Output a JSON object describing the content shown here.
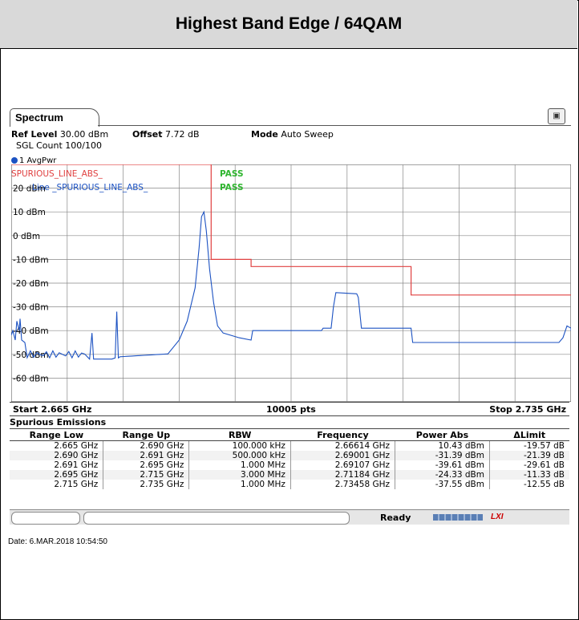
{
  "page_title": "Highest Band Edge / 64QAM",
  "tab": {
    "label": "Spectrum"
  },
  "header": {
    "ref_level_label": "Ref Level",
    "ref_level_value": "30.00 dBm",
    "offset_label": "Offset",
    "offset_value": "7.72 dB",
    "mode_label": "Mode",
    "mode_value": "Auto Sweep",
    "sgl_count": "SGL Count 100/100"
  },
  "trace_label": "1 AvgPwr",
  "limit_line_1": {
    "name": "SPURIOUS_LINE_ABS_",
    "status": "PASS"
  },
  "limit_line_2": {
    "name": "Line _SPURIOUS_LINE_ABS_",
    "status": "PASS"
  },
  "y_ticks": [
    "20 dBm",
    "10 dBm",
    "0 dBm",
    "-10 dBm",
    "-20 dBm",
    "-30 dBm",
    "-40 dBm",
    "-50 dBm",
    "-60 dBm"
  ],
  "bottom": {
    "start": "Start 2.665 GHz",
    "points": "10005 pts",
    "stop": "Stop 2.735 GHz"
  },
  "spurious": {
    "heading": "Spurious Emissions",
    "columns": [
      "Range Low",
      "Range Up",
      "RBW",
      "Frequency",
      "Power Abs",
      "ΔLimit"
    ],
    "rows": [
      [
        "2.665 GHz",
        "2.690 GHz",
        "100.000 kHz",
        "2.66614 GHz",
        "10.43 dBm",
        "-19.57 dB"
      ],
      [
        "2.690 GHz",
        "2.691 GHz",
        "500.000 kHz",
        "2.69001 GHz",
        "-31.39 dBm",
        "-21.39 dB"
      ],
      [
        "2.691 GHz",
        "2.695 GHz",
        "1.000 MHz",
        "2.69107 GHz",
        "-39.61 dBm",
        "-29.61 dB"
      ],
      [
        "2.695 GHz",
        "2.715 GHz",
        "3.000 MHz",
        "2.71184 GHz",
        "-24.33 dBm",
        "-11.33 dB"
      ],
      [
        "2.715 GHz",
        "2.735 GHz",
        "1.000 MHz",
        "2.73458 GHz",
        "-37.55 dBm",
        "-12.55 dB"
      ]
    ]
  },
  "status": {
    "ready": "Ready",
    "lxi": "LXI"
  },
  "date": "Date: 6.MAR.2018  10:54:50",
  "colors": {
    "trace": "#1c52c2",
    "limit": "#e04040",
    "pass": "#2fb52f"
  }
}
